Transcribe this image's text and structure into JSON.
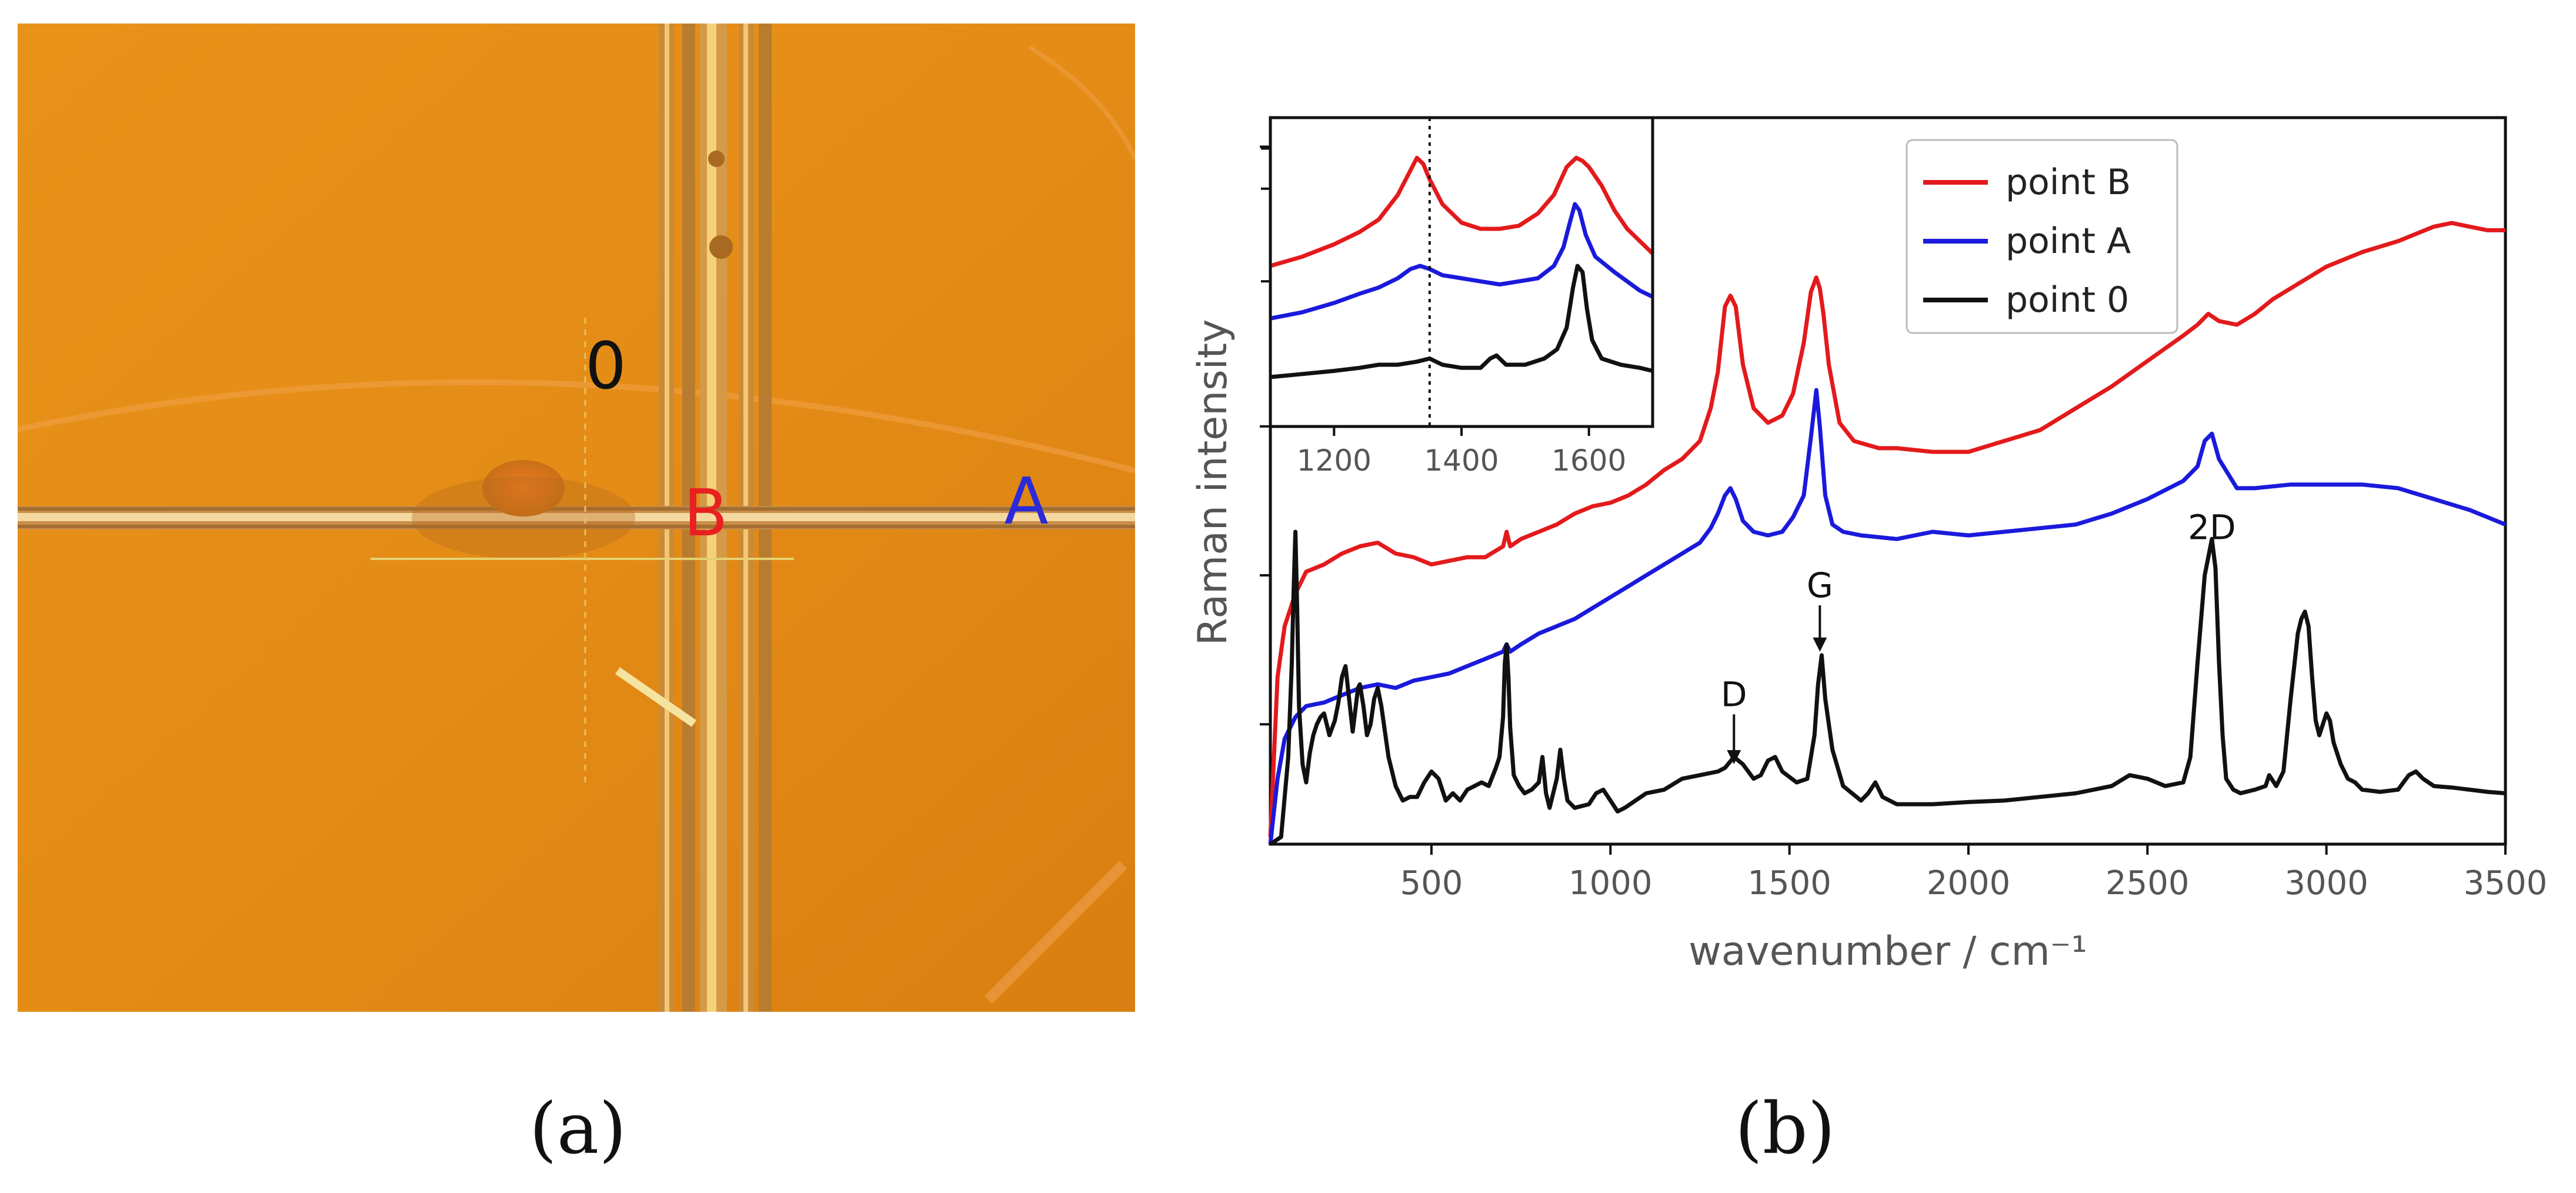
{
  "panel_a": {
    "labels": {
      "point0": "0",
      "pointB": "B",
      "pointA": "A"
    },
    "colors": {
      "background": "#e58f16",
      "label0": "#111111",
      "labelB": "#e82020",
      "labelA": "#2a2ad8"
    },
    "caption": "(a)"
  },
  "panel_b": {
    "caption": "(b)"
  },
  "chart_data": [
    {
      "type": "line",
      "panel": "main",
      "xlabel": "wavenumber / cm⁻¹",
      "ylabel": "Raman intensity",
      "xlim": [
        50,
        3500
      ],
      "ylim": [
        0,
        1000
      ],
      "xticks": [
        500,
        1000,
        1500,
        2000,
        2500,
        3000,
        3500
      ],
      "xtick_labels": [
        "500",
        "1000",
        "1500",
        "2000",
        "2500",
        "3000",
        "3500"
      ],
      "ytick_values": [
        165,
        370,
        575,
        960
      ],
      "legend": {
        "placement": "top-right",
        "entries": [
          "point B",
          "point A",
          "point 0"
        ]
      },
      "annotations": [
        {
          "text": "D",
          "x": 1345,
          "y_label": 190,
          "y_tip": 110
        },
        {
          "text": "G",
          "x": 1585,
          "y_label": 340,
          "y_tip": 265
        },
        {
          "text": "2D",
          "x": 2680,
          "y_label": 420,
          "y_tip": null
        }
      ],
      "series": [
        {
          "name": "point B",
          "color": "#e31a1c",
          "x": [
            50,
            70,
            90,
            120,
            150,
            200,
            250,
            300,
            350,
            400,
            450,
            500,
            550,
            600,
            650,
            700,
            710,
            720,
            750,
            800,
            850,
            900,
            950,
            1000,
            1050,
            1100,
            1150,
            1200,
            1250,
            1280,
            1300,
            1320,
            1335,
            1350,
            1370,
            1400,
            1440,
            1480,
            1510,
            1540,
            1560,
            1575,
            1585,
            1595,
            1610,
            1640,
            1680,
            1750,
            1800,
            1900,
            2000,
            2100,
            2200,
            2300,
            2400,
            2500,
            2600,
            2640,
            2670,
            2700,
            2750,
            2800,
            2850,
            2900,
            3000,
            3100,
            3200,
            3300,
            3350,
            3400,
            3450,
            3500
          ],
          "y": [
            10,
            230,
            300,
            345,
            375,
            385,
            400,
            410,
            415,
            400,
            395,
            385,
            390,
            395,
            395,
            410,
            430,
            410,
            420,
            430,
            440,
            455,
            465,
            470,
            480,
            495,
            515,
            530,
            555,
            600,
            650,
            740,
            755,
            740,
            660,
            600,
            580,
            590,
            620,
            690,
            760,
            780,
            765,
            730,
            660,
            580,
            555,
            545,
            545,
            540,
            540,
            555,
            570,
            600,
            630,
            665,
            700,
            715,
            730,
            720,
            715,
            730,
            750,
            765,
            795,
            815,
            830,
            850,
            855,
            850,
            845,
            845
          ]
        },
        {
          "name": "point A",
          "color": "#1a1adc",
          "x": [
            50,
            70,
            90,
            120,
            150,
            200,
            250,
            300,
            350,
            400,
            450,
            500,
            550,
            600,
            650,
            700,
            710,
            720,
            750,
            800,
            850,
            900,
            950,
            1000,
            1050,
            1100,
            1150,
            1200,
            1250,
            1280,
            1300,
            1320,
            1335,
            1350,
            1370,
            1400,
            1440,
            1480,
            1510,
            1540,
            1560,
            1575,
            1585,
            1600,
            1620,
            1650,
            1700,
            1800,
            1900,
            2000,
            2100,
            2200,
            2300,
            2400,
            2500,
            2600,
            2640,
            2660,
            2680,
            2700,
            2750,
            2800,
            2900,
            3000,
            3100,
            3200,
            3300,
            3400,
            3450,
            3500
          ],
          "y": [
            0,
            90,
            145,
            175,
            190,
            195,
            205,
            215,
            220,
            215,
            225,
            230,
            235,
            245,
            255,
            265,
            275,
            265,
            275,
            290,
            300,
            310,
            325,
            340,
            355,
            370,
            385,
            400,
            415,
            435,
            455,
            480,
            490,
            475,
            445,
            430,
            425,
            430,
            450,
            480,
            560,
            625,
            575,
            480,
            440,
            430,
            425,
            420,
            430,
            425,
            430,
            435,
            440,
            455,
            475,
            500,
            520,
            555,
            565,
            530,
            490,
            490,
            495,
            495,
            495,
            490,
            475,
            460,
            450,
            440
          ]
        },
        {
          "name": "point 0",
          "color": "#111111",
          "x": [
            50,
            80,
            100,
            110,
            115,
            120,
            125,
            130,
            140,
            150,
            160,
            170,
            180,
            190,
            200,
            215,
            230,
            240,
            250,
            260,
            270,
            280,
            295,
            300,
            310,
            320,
            330,
            340,
            350,
            360,
            380,
            400,
            420,
            440,
            460,
            480,
            500,
            520,
            540,
            560,
            580,
            600,
            620,
            640,
            660,
            680,
            690,
            700,
            705,
            710,
            715,
            720,
            730,
            745,
            760,
            780,
            800,
            810,
            820,
            830,
            850,
            860,
            870,
            880,
            900,
            940,
            960,
            980,
            1000,
            1020,
            1040,
            1100,
            1150,
            1200,
            1250,
            1300,
            1320,
            1345,
            1370,
            1400,
            1420,
            1440,
            1460,
            1480,
            1520,
            1550,
            1570,
            1580,
            1590,
            1600,
            1620,
            1650,
            1700,
            1720,
            1740,
            1760,
            1800,
            1900,
            2000,
            2100,
            2200,
            2300,
            2400,
            2450,
            2500,
            2550,
            2600,
            2620,
            2640,
            2660,
            2670,
            2680,
            2690,
            2700,
            2710,
            2720,
            2740,
            2760,
            2800,
            2830,
            2840,
            2860,
            2880,
            2900,
            2920,
            2930,
            2940,
            2950,
            2960,
            2970,
            2980,
            3000,
            3010,
            3020,
            3040,
            3060,
            3080,
            3100,
            3150,
            3200,
            3230,
            3250,
            3270,
            3300,
            3350,
            3400,
            3450,
            3500
          ],
          "y": [
            0,
            10,
            120,
            250,
            350,
            430,
            320,
            190,
            110,
            85,
            125,
            150,
            165,
            175,
            180,
            150,
            170,
            195,
            230,
            245,
            200,
            155,
            215,
            220,
            190,
            150,
            165,
            200,
            215,
            190,
            120,
            80,
            60,
            65,
            65,
            85,
            100,
            90,
            60,
            70,
            60,
            75,
            80,
            85,
            80,
            105,
            120,
            175,
            250,
            275,
            230,
            160,
            95,
            80,
            70,
            75,
            85,
            120,
            70,
            50,
            90,
            130,
            90,
            60,
            50,
            55,
            70,
            75,
            60,
            45,
            50,
            70,
            75,
            90,
            95,
            100,
            105,
            120,
            110,
            90,
            95,
            115,
            120,
            100,
            85,
            90,
            150,
            220,
            260,
            200,
            130,
            80,
            60,
            70,
            85,
            65,
            55,
            55,
            58,
            60,
            65,
            70,
            80,
            95,
            90,
            80,
            85,
            120,
            250,
            370,
            395,
            420,
            380,
            250,
            150,
            90,
            75,
            70,
            75,
            80,
            95,
            80,
            100,
            200,
            290,
            310,
            320,
            300,
            230,
            170,
            150,
            180,
            170,
            140,
            110,
            90,
            85,
            75,
            72,
            75,
            95,
            100,
            90,
            80,
            78,
            75,
            72,
            70
          ]
        }
      ]
    },
    {
      "type": "line",
      "panel": "inset",
      "xlim": [
        1100,
        1700
      ],
      "ylim": [
        0,
        100
      ],
      "xticks": [
        1200,
        1400,
        1600
      ],
      "xtick_labels": [
        "1200",
        "1400",
        "1600"
      ],
      "ytick_values": [
        47,
        77,
        90
      ],
      "vline_x": 1350,
      "series": [
        {
          "name": "point B",
          "color": "#e31a1c",
          "x": [
            1100,
            1150,
            1200,
            1240,
            1270,
            1300,
            1315,
            1330,
            1340,
            1350,
            1370,
            1400,
            1430,
            1460,
            1490,
            1520,
            1545,
            1565,
            1580,
            1590,
            1600,
            1620,
            1640,
            1660,
            1680,
            1700
          ],
          "y": [
            52,
            55,
            59,
            63,
            67,
            75,
            81,
            87,
            85,
            80,
            72,
            66,
            64,
            64,
            65,
            69,
            75,
            84,
            87,
            86,
            84,
            78,
            70,
            64,
            60,
            56
          ]
        },
        {
          "name": "point A",
          "color": "#1a1adc",
          "x": [
            1100,
            1150,
            1200,
            1240,
            1270,
            1300,
            1320,
            1335,
            1350,
            1370,
            1400,
            1430,
            1460,
            1490,
            1520,
            1545,
            1560,
            1570,
            1578,
            1585,
            1595,
            1610,
            1640,
            1660,
            1680,
            1700
          ],
          "y": [
            35,
            37,
            40,
            43,
            45,
            48,
            51,
            52,
            51,
            49,
            48,
            47,
            46,
            47,
            48,
            52,
            58,
            66,
            72,
            70,
            62,
            55,
            50,
            47,
            44,
            42
          ]
        },
        {
          "name": "point 0",
          "color": "#111111",
          "x": [
            1100,
            1150,
            1200,
            1240,
            1270,
            1300,
            1330,
            1350,
            1370,
            1400,
            1430,
            1445,
            1455,
            1470,
            1500,
            1530,
            1550,
            1565,
            1575,
            1582,
            1590,
            1597,
            1605,
            1620,
            1650,
            1680,
            1700
          ],
          "y": [
            16,
            17,
            18,
            19,
            20,
            20,
            21,
            22,
            20,
            19,
            19,
            22,
            23,
            20,
            20,
            22,
            25,
            32,
            45,
            52,
            50,
            38,
            28,
            22,
            20,
            19,
            18
          ]
        }
      ]
    }
  ]
}
